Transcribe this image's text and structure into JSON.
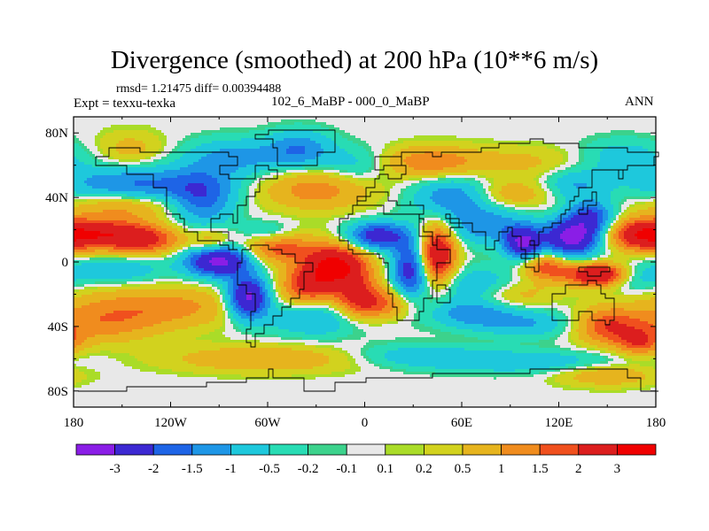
{
  "title": "Divergence (smoothed) at 200 hPa (10**6 m/s)",
  "stats": "rmsd= 1.21475 diff= 0.00394488",
  "left_label": "Expt = texxu-texka",
  "center_label": "102_6_MaBP - 000_0_MaBP",
  "right_label": "ANN",
  "chart_data": {
    "type": "heatmap",
    "title": "Divergence (smoothed) at 200 hPa (10**6 m/s)",
    "xlim": [
      -180,
      180
    ],
    "ylim": [
      -90,
      90
    ],
    "xticks": [
      {
        "value": -180,
        "label": "180"
      },
      {
        "value": -120,
        "label": "120W"
      },
      {
        "value": -60,
        "label": "60W"
      },
      {
        "value": 0,
        "label": "0"
      },
      {
        "value": 60,
        "label": "60E"
      },
      {
        "value": 120,
        "label": "120E"
      },
      {
        "value": 180,
        "label": "180"
      }
    ],
    "yticks": [
      {
        "value": 80,
        "label": "80N"
      },
      {
        "value": 40,
        "label": "40N"
      },
      {
        "value": 0,
        "label": "0"
      },
      {
        "value": -40,
        "label": "40S"
      },
      {
        "value": -80,
        "label": "80S"
      }
    ],
    "colorbar": {
      "levels": [
        "-3",
        "-2",
        "-1.5",
        "-1",
        "-0.5",
        "-0.2",
        "-0.1",
        "0.1",
        "0.2",
        "0.5",
        "1",
        "1.5",
        "2",
        "3"
      ],
      "colors": [
        "#8a1ee6",
        "#3c28d2",
        "#1e64e6",
        "#1e96e6",
        "#1ec8dc",
        "#28dcb4",
        "#3cd28c",
        "#e8e8e8",
        "#aadc28",
        "#d2d21e",
        "#e6b41e",
        "#f08c1e",
        "#f0501e",
        "#dc1e1e",
        "#f00000"
      ]
    },
    "features": [
      {
        "lon": -160,
        "lat": 17,
        "value": 2.6,
        "sx": 22,
        "sy": 7
      },
      {
        "lon": -132,
        "lat": 13,
        "value": 1.4,
        "sx": 15,
        "sy": 6
      },
      {
        "lon": -140,
        "lat": 48,
        "value": -1.6,
        "sx": 35,
        "sy": 8
      },
      {
        "lon": -150,
        "lat": 35,
        "value": 1.1,
        "sx": 25,
        "sy": 6
      },
      {
        "lon": -155,
        "lat": -5,
        "value": -1.0,
        "sx": 22,
        "sy": 6
      },
      {
        "lon": -130,
        "lat": -28,
        "value": 1.3,
        "sx": 40,
        "sy": 9
      },
      {
        "lon": -165,
        "lat": -40,
        "value": 1.0,
        "sx": 25,
        "sy": 8
      },
      {
        "lon": -145,
        "lat": 70,
        "value": 0.7,
        "sx": 15,
        "sy": 8
      },
      {
        "lon": -90,
        "lat": 1,
        "value": -3.5,
        "sx": 14,
        "sy": 7
      },
      {
        "lon": -72,
        "lat": -22,
        "value": -3.4,
        "sx": 9,
        "sy": 9
      },
      {
        "lon": -100,
        "lat": 38,
        "value": -1.6,
        "sx": 14,
        "sy": 12
      },
      {
        "lon": -80,
        "lat": 65,
        "value": -1.2,
        "sx": 22,
        "sy": 8
      },
      {
        "lon": -40,
        "lat": 70,
        "value": -1.4,
        "sx": 14,
        "sy": 8
      },
      {
        "lon": -95,
        "lat": 12,
        "value": 1.2,
        "sx": 9,
        "sy": 6
      },
      {
        "lon": -55,
        "lat": 9,
        "value": 1.8,
        "sx": 16,
        "sy": 7
      },
      {
        "lon": -18,
        "lat": -2,
        "value": 3.2,
        "sx": 14,
        "sy": 9
      },
      {
        "lon": -35,
        "lat": -15,
        "value": 2.0,
        "sx": 12,
        "sy": 8
      },
      {
        "lon": -5,
        "lat": -22,
        "value": 1.8,
        "sx": 10,
        "sy": 10
      },
      {
        "lon": -30,
        "lat": -35,
        "value": -1.1,
        "sx": 25,
        "sy": 8
      },
      {
        "lon": -60,
        "lat": 18,
        "value": -0.9,
        "sx": 12,
        "sy": 5
      },
      {
        "lon": -30,
        "lat": 45,
        "value": 1.3,
        "sx": 25,
        "sy": 9
      },
      {
        "lon": -5,
        "lat": 60,
        "value": -0.8,
        "sx": 15,
        "sy": 8
      },
      {
        "lon": -60,
        "lat": -60,
        "value": 1.0,
        "sx": 45,
        "sy": 6
      },
      {
        "lon": 8,
        "lat": 16,
        "value": -2.6,
        "sx": 13,
        "sy": 6
      },
      {
        "lon": 28,
        "lat": -5,
        "value": -2.4,
        "sx": 8,
        "sy": 13
      },
      {
        "lon": 45,
        "lat": 5,
        "value": 3.0,
        "sx": 8,
        "sy": 13
      },
      {
        "lon": 12,
        "lat": -26,
        "value": 1.5,
        "sx": 14,
        "sy": 7
      },
      {
        "lon": 55,
        "lat": 40,
        "value": -1.5,
        "sx": 18,
        "sy": 9
      },
      {
        "lon": 75,
        "lat": 22,
        "value": -1.3,
        "sx": 18,
        "sy": 8
      },
      {
        "lon": 40,
        "lat": 62,
        "value": 1.4,
        "sx": 22,
        "sy": 7
      },
      {
        "lon": 100,
        "lat": 62,
        "value": 0.6,
        "sx": 28,
        "sy": 7
      },
      {
        "lon": 90,
        "lat": 42,
        "value": 1.0,
        "sx": 18,
        "sy": 6
      },
      {
        "lon": 70,
        "lat": -15,
        "value": -1.1,
        "sx": 18,
        "sy": 8
      },
      {
        "lon": 65,
        "lat": -32,
        "value": -1.2,
        "sx": 18,
        "sy": 6
      },
      {
        "lon": 100,
        "lat": -38,
        "value": -1.0,
        "sx": 22,
        "sy": 6
      },
      {
        "lon": 90,
        "lat": -20,
        "value": 0.9,
        "sx": 18,
        "sy": 6
      },
      {
        "lon": 98,
        "lat": 12,
        "value": -3.0,
        "sx": 8,
        "sy": 7
      },
      {
        "lon": 128,
        "lat": 15,
        "value": -3.4,
        "sx": 12,
        "sy": 8
      },
      {
        "lon": 140,
        "lat": 28,
        "value": -2.0,
        "sx": 10,
        "sy": 7
      },
      {
        "lon": 145,
        "lat": -8,
        "value": 3.2,
        "sx": 14,
        "sy": 5
      },
      {
        "lon": 112,
        "lat": -3,
        "value": 1.8,
        "sx": 10,
        "sy": 6
      },
      {
        "lon": 170,
        "lat": 17,
        "value": 2.2,
        "sx": 14,
        "sy": 7
      },
      {
        "lon": 165,
        "lat": -10,
        "value": -1.0,
        "sx": 12,
        "sy": 6
      },
      {
        "lon": 150,
        "lat": -40,
        "value": 1.8,
        "sx": 14,
        "sy": 8
      },
      {
        "lon": 170,
        "lat": -50,
        "value": 1.6,
        "sx": 10,
        "sy": 6
      },
      {
        "lon": 130,
        "lat": 48,
        "value": -1.0,
        "sx": 14,
        "sy": 7
      },
      {
        "lon": 160,
        "lat": 65,
        "value": -0.8,
        "sx": 20,
        "sy": 8
      },
      {
        "lon": 100,
        "lat": -62,
        "value": -0.9,
        "sx": 45,
        "sy": 5
      },
      {
        "lon": 150,
        "lat": -70,
        "value": 1.0,
        "sx": 22,
        "sy": 5
      },
      {
        "lon": 30,
        "lat": -58,
        "value": -0.8,
        "sx": 30,
        "sy": 5
      }
    ]
  }
}
